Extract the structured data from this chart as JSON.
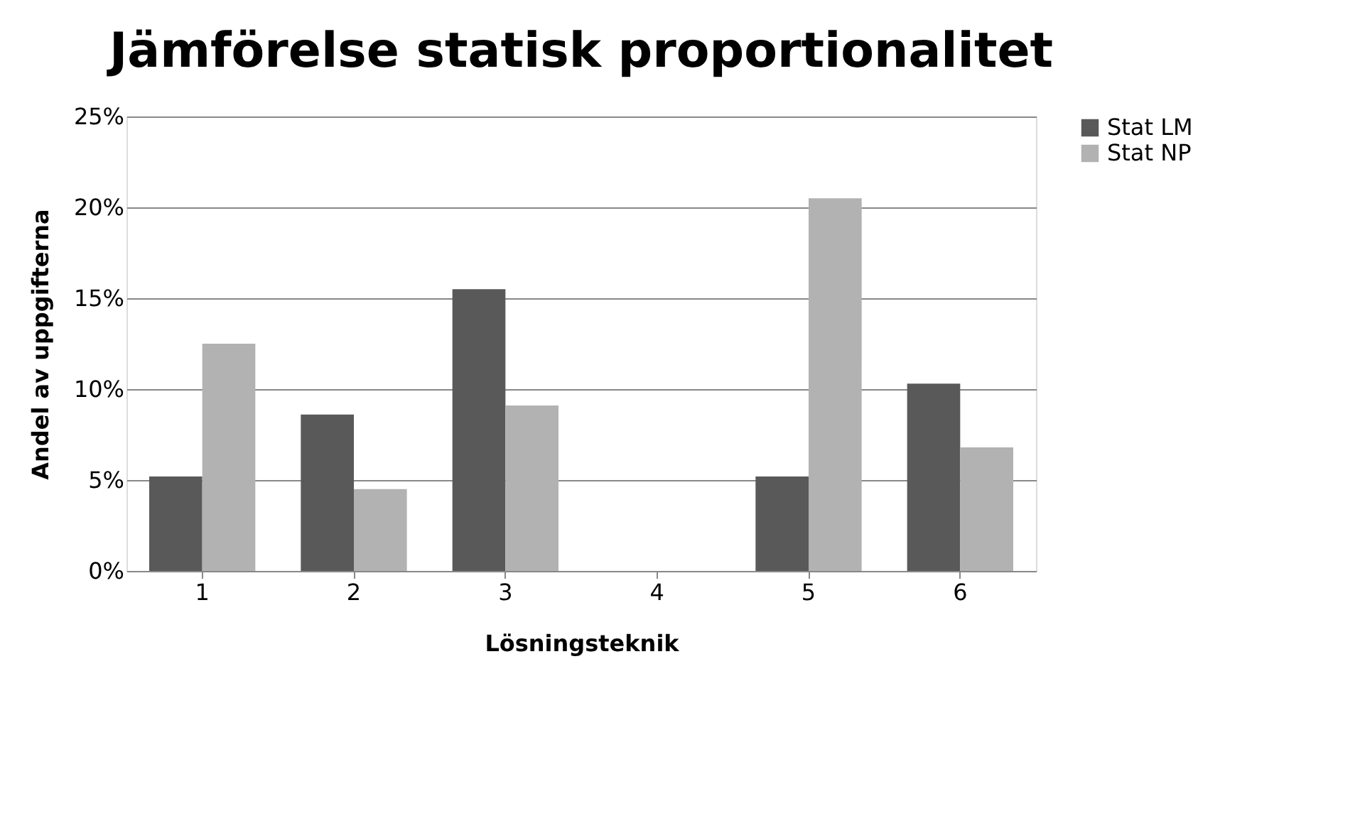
{
  "chart_data": {
    "type": "bar",
    "title": "Jämförelse statisk proportionalitet",
    "xlabel": "Lösningsteknik",
    "ylabel": "Andel av uppgifterna",
    "categories": [
      "1",
      "2",
      "3",
      "4",
      "5",
      "6"
    ],
    "series": [
      {
        "name": "Stat LM",
        "color": "#595959",
        "values": [
          5.2,
          8.6,
          15.5,
          0,
          5.2,
          10.3
        ]
      },
      {
        "name": "Stat NP",
        "color": "#b2b2b2",
        "values": [
          12.5,
          4.5,
          9.1,
          0,
          20.5,
          6.8
        ]
      }
    ],
    "ylim": [
      0,
      25
    ],
    "yticks": [
      {
        "value": 0,
        "label": "0%"
      },
      {
        "value": 5,
        "label": "5%"
      },
      {
        "value": 10,
        "label": "10%"
      },
      {
        "value": 15,
        "label": "15%"
      },
      {
        "value": 20,
        "label": "20%"
      },
      {
        "value": 25,
        "label": "25%"
      }
    ],
    "grid": "y",
    "legend": "right"
  }
}
